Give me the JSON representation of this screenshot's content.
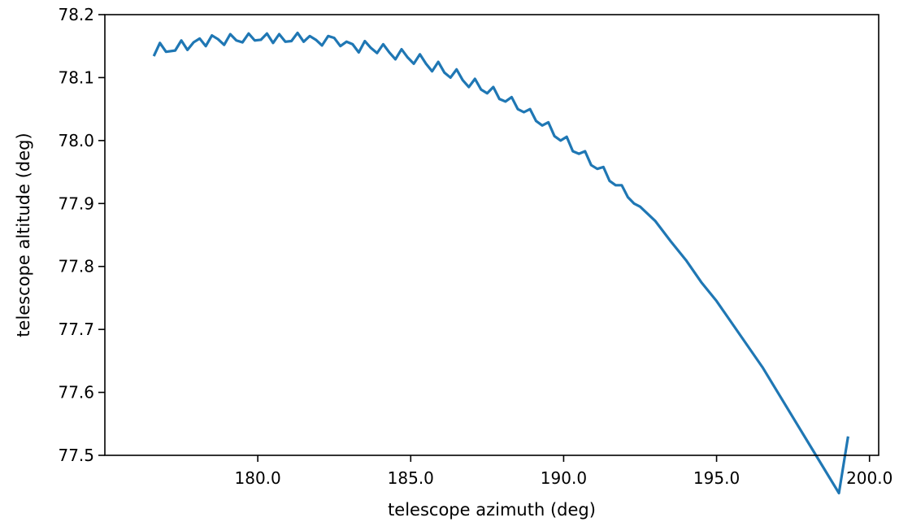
{
  "chart_data": {
    "type": "line",
    "title": "",
    "xlabel": "telescope azimuth (deg)",
    "ylabel": "telescope altitude (deg)",
    "xlim": [
      175.0,
      200.3
    ],
    "ylim": [
      77.5,
      78.2
    ],
    "xticks": [
      180.0,
      185.0,
      190.0,
      195.0,
      200.0
    ],
    "xtick_labels": [
      "180.0",
      "185.0",
      "190.0",
      "195.0",
      "200.0"
    ],
    "yticks": [
      77.5,
      77.6,
      77.7,
      77.8,
      77.9,
      78.0,
      78.1,
      78.2
    ],
    "ytick_labels": [
      "77.5",
      "77.6",
      "77.7",
      "77.8",
      "77.9",
      "78.0",
      "78.1",
      "78.2"
    ],
    "grid": false,
    "colors": {
      "series": "#1f77b4",
      "axes": "#000000"
    },
    "series": [
      {
        "x": [
          176.6,
          176.8,
          177.0,
          177.3,
          177.5,
          177.7,
          177.9,
          178.1,
          178.3,
          178.5,
          178.7,
          178.9,
          179.1,
          179.3,
          179.5,
          179.7,
          179.9,
          180.1,
          180.3,
          180.5,
          180.7,
          180.9,
          181.1,
          181.3,
          181.5,
          181.7,
          181.9,
          182.1,
          182.3,
          182.5,
          182.7,
          182.9,
          183.1,
          183.3,
          183.5,
          183.7,
          183.9,
          184.1,
          184.3,
          184.5,
          184.7,
          184.9,
          185.1,
          185.3,
          185.5,
          185.7,
          185.9,
          186.1,
          186.3,
          186.5,
          186.7,
          186.9,
          187.1,
          187.3,
          187.5,
          187.7,
          187.9,
          188.1,
          188.3,
          188.5,
          188.7,
          188.9,
          189.1,
          189.3,
          189.5,
          189.7,
          189.9,
          190.1,
          190.3,
          190.5,
          190.7,
          190.9,
          191.1,
          191.3,
          191.5,
          191.7,
          191.9,
          192.1,
          192.3,
          192.5,
          193.0,
          193.5,
          194.0,
          194.5,
          195.0,
          195.5,
          196.0,
          196.5,
          197.0,
          197.5,
          198.0,
          198.5,
          199.0,
          199.3
        ],
        "y": [
          78.134,
          78.155,
          78.141,
          78.143,
          78.159,
          78.144,
          78.156,
          78.162,
          78.15,
          78.167,
          78.161,
          78.152,
          78.169,
          78.159,
          78.156,
          78.17,
          78.159,
          78.16,
          78.17,
          78.155,
          78.169,
          78.157,
          78.158,
          78.171,
          78.157,
          78.166,
          78.16,
          78.151,
          78.166,
          78.163,
          78.15,
          78.157,
          78.153,
          78.14,
          78.158,
          78.147,
          78.139,
          78.153,
          78.14,
          78.129,
          78.145,
          78.132,
          78.122,
          78.137,
          78.122,
          78.11,
          78.125,
          78.108,
          78.1,
          78.113,
          78.096,
          78.085,
          78.098,
          78.081,
          78.075,
          78.085,
          78.066,
          78.062,
          78.069,
          78.05,
          78.045,
          78.05,
          78.031,
          78.024,
          78.029,
          78.007,
          78.0,
          78.006,
          77.983,
          77.979,
          77.983,
          77.961,
          77.955,
          77.958,
          77.936,
          77.929,
          77.929,
          77.91,
          77.9,
          77.895,
          77.872,
          77.84,
          77.81,
          77.775,
          77.745,
          77.71,
          77.675,
          77.64,
          77.6,
          77.56,
          77.52,
          77.48,
          77.44,
          77.53
        ]
      }
    ]
  }
}
